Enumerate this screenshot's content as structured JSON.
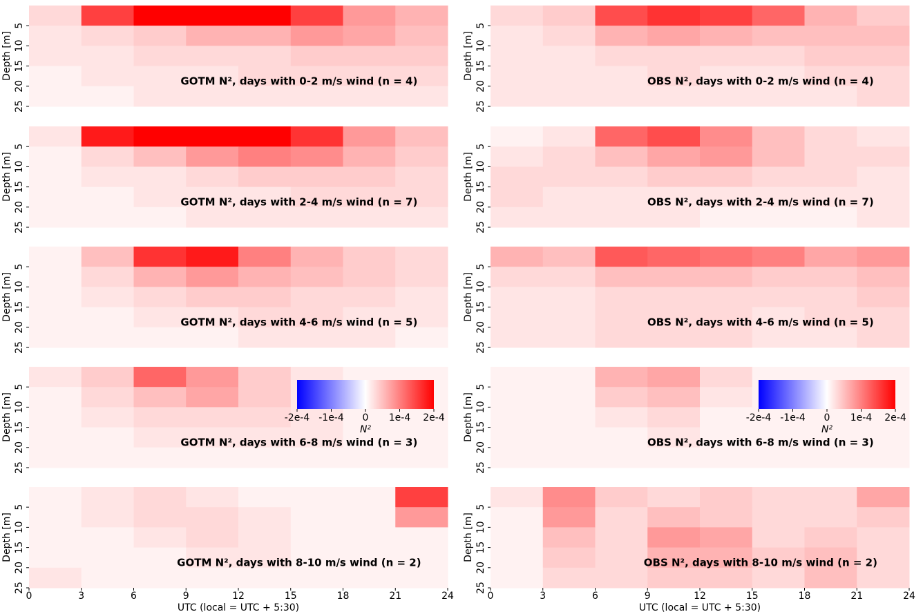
{
  "chart_data": [
    {
      "type": "heatmap",
      "title": "GOTM N², days with 0-2 m/s wind (n = 4)",
      "ylabel": "Depth [m]",
      "colormap": "bwr",
      "clim": [
        -0.0002,
        0.0002
      ],
      "ylim": [
        0,
        25
      ],
      "yticks": [
        5,
        10,
        15,
        20,
        25
      ],
      "xlim": [
        0,
        24
      ],
      "xbins": [
        0,
        3,
        6,
        9,
        12,
        15,
        18,
        21,
        24
      ],
      "ybins": [
        0,
        5,
        10,
        15,
        20,
        25
      ],
      "values": [
        [
          3e-05,
          0.00015,
          0.0002,
          0.0002,
          0.0002,
          0.00015,
          8e-05,
          6e-05
        ],
        [
          2e-05,
          3e-05,
          4e-05,
          6e-05,
          6e-05,
          8e-05,
          7e-05,
          5e-05
        ],
        [
          2e-05,
          2e-05,
          3e-05,
          3e-05,
          3e-05,
          4e-05,
          4e-05,
          4e-05
        ],
        [
          1e-05,
          2e-05,
          2e-05,
          2e-05,
          3e-05,
          3e-05,
          3e-05,
          3e-05
        ],
        [
          1e-05,
          1e-05,
          2e-05,
          2e-05,
          2e-05,
          2e-05,
          2e-05,
          2e-05
        ]
      ]
    },
    {
      "type": "heatmap",
      "title": "GOTM N², days with 2-4 m/s wind (n = 7)",
      "ylabel": "Depth [m]",
      "colormap": "bwr",
      "clim": [
        -0.0002,
        0.0002
      ],
      "ylim": [
        0,
        25
      ],
      "yticks": [
        5,
        10,
        15,
        20,
        25
      ],
      "xlim": [
        0,
        24
      ],
      "xbins": [
        0,
        3,
        6,
        9,
        12,
        15,
        18,
        21,
        24
      ],
      "ybins": [
        0,
        5,
        10,
        15,
        20,
        25
      ],
      "values": [
        [
          2e-05,
          0.00018,
          0.0002,
          0.0002,
          0.0002,
          0.00016,
          8e-05,
          5e-05
        ],
        [
          1e-05,
          3e-05,
          5e-05,
          8e-05,
          0.0001,
          9e-05,
          6e-05,
          4e-05
        ],
        [
          1e-05,
          2e-05,
          2e-05,
          3e-05,
          4e-05,
          4e-05,
          4e-05,
          3e-05
        ],
        [
          1e-05,
          1e-05,
          2e-05,
          2e-05,
          2e-05,
          3e-05,
          3e-05,
          3e-05
        ],
        [
          1e-05,
          1e-05,
          1e-05,
          2e-05,
          2e-05,
          2e-05,
          2e-05,
          2e-05
        ]
      ]
    },
    {
      "type": "heatmap",
      "title": "GOTM N², days with 4-6 m/s wind (n = 5)",
      "ylabel": "Depth [m]",
      "colormap": "bwr",
      "clim": [
        -0.0002,
        0.0002
      ],
      "ylim": [
        0,
        25
      ],
      "yticks": [
        5,
        10,
        15,
        20,
        25
      ],
      "xlim": [
        0,
        24
      ],
      "xbins": [
        0,
        3,
        6,
        9,
        12,
        15,
        18,
        21,
        24
      ],
      "ybins": [
        0,
        5,
        10,
        15,
        20,
        25
      ],
      "values": [
        [
          1e-05,
          5e-05,
          0.00016,
          0.00018,
          0.0001,
          6e-05,
          4e-05,
          3e-05
        ],
        [
          1e-05,
          3e-05,
          6e-05,
          8e-05,
          6e-05,
          5e-05,
          4e-05,
          3e-05
        ],
        [
          1e-05,
          2e-05,
          3e-05,
          4e-05,
          4e-05,
          3e-05,
          3e-05,
          2e-05
        ],
        [
          1e-05,
          1e-05,
          2e-05,
          2e-05,
          3e-05,
          3e-05,
          2e-05,
          2e-05
        ],
        [
          1e-05,
          1e-05,
          1e-05,
          1e-05,
          2e-05,
          2e-05,
          2e-05,
          1e-05
        ]
      ]
    },
    {
      "type": "heatmap",
      "title": "GOTM N², days with 6-8 m/s wind (n = 3)",
      "ylabel": "Depth [m]",
      "colormap": "bwr",
      "clim": [
        -0.0002,
        0.0002
      ],
      "ylim": [
        0,
        25
      ],
      "yticks": [
        5,
        10,
        15,
        20,
        25
      ],
      "xlim": [
        0,
        24
      ],
      "xbins": [
        0,
        3,
        6,
        9,
        12,
        15,
        18,
        21,
        24
      ],
      "ybins": [
        0,
        5,
        10,
        15,
        20,
        25
      ],
      "values": [
        [
          2e-05,
          4e-05,
          0.00012,
          8e-05,
          4e-05,
          2e-05,
          1e-05,
          1e-05
        ],
        [
          1e-05,
          3e-05,
          5e-05,
          7e-05,
          4e-05,
          2e-05,
          1e-05,
          1e-05
        ],
        [
          1e-05,
          2e-05,
          3e-05,
          3e-05,
          3e-05,
          2e-05,
          1e-05,
          1e-05
        ],
        [
          1e-05,
          1e-05,
          2e-05,
          2e-05,
          2e-05,
          2e-05,
          1e-05,
          1e-05
        ],
        [
          1e-05,
          1e-05,
          1e-05,
          1e-05,
          1e-05,
          1e-05,
          1e-05,
          1e-05
        ]
      ],
      "colorbar": {
        "label": "N²",
        "ticks": [
          {
            "value": -0.0002,
            "label": "-2e-4"
          },
          {
            "value": -0.0001,
            "label": "-1e-4"
          },
          0,
          {
            "value": 0.0001,
            "label": "1e-4"
          },
          {
            "value": 0.0002,
            "label": "2e-4"
          }
        ]
      }
    },
    {
      "type": "heatmap",
      "title": "GOTM N², days with 8-10 m/s wind (n = 2)",
      "ylabel": "Depth [m]",
      "xlabel": "UTC (local = UTC + 5:30)",
      "colormap": "bwr",
      "clim": [
        -0.0002,
        0.0002
      ],
      "ylim": [
        0,
        25
      ],
      "yticks": [
        5,
        10,
        15,
        20,
        25
      ],
      "xlim": [
        0,
        24
      ],
      "xticks": [
        0,
        3,
        6,
        9,
        12,
        15,
        18,
        21,
        24
      ],
      "xbins": [
        0,
        3,
        6,
        9,
        12,
        15,
        18,
        21,
        24
      ],
      "ybins": [
        0,
        5,
        10,
        15,
        20,
        25
      ],
      "values": [
        [
          1e-05,
          2e-05,
          3e-05,
          2e-05,
          1e-05,
          1e-05,
          1e-05,
          0.00015
        ],
        [
          1e-05,
          2e-05,
          3e-05,
          3e-05,
          2e-05,
          1e-05,
          1e-05,
          8e-05
        ],
        [
          1e-05,
          1e-05,
          2e-05,
          3e-05,
          2e-05,
          1e-05,
          1e-05,
          1e-05
        ],
        [
          1e-05,
          1e-05,
          1e-05,
          2e-05,
          2e-05,
          1e-05,
          1e-05,
          1e-05
        ],
        [
          2e-05,
          1e-05,
          1e-05,
          1e-05,
          1e-05,
          1e-05,
          1e-05,
          1e-05
        ]
      ]
    },
    {
      "type": "heatmap",
      "title": "OBS N², days with 0-2 m/s wind (n = 4)",
      "ylabel": "Depth [m]",
      "colormap": "bwr",
      "clim": [
        -0.0002,
        0.0002
      ],
      "ylim": [
        0,
        25
      ],
      "yticks": [
        5,
        10,
        15,
        20,
        25
      ],
      "xlim": [
        0,
        24
      ],
      "xbins": [
        0,
        3,
        6,
        9,
        12,
        15,
        18,
        21,
        24
      ],
      "ybins": [
        0,
        5,
        10,
        15,
        20,
        25
      ],
      "values": [
        [
          3e-05,
          4e-05,
          0.00014,
          0.00016,
          0.00015,
          0.00012,
          6e-05,
          4e-05
        ],
        [
          2e-05,
          3e-05,
          6e-05,
          7e-05,
          6e-05,
          5e-05,
          5e-05,
          5e-05
        ],
        [
          2e-05,
          2e-05,
          3e-05,
          3e-05,
          3e-05,
          3e-05,
          4e-05,
          4e-05
        ],
        [
          2e-05,
          2e-05,
          2e-05,
          3e-05,
          2e-05,
          2e-05,
          3e-05,
          3e-05
        ],
        [
          2e-05,
          2e-05,
          2e-05,
          2e-05,
          2e-05,
          2e-05,
          2e-05,
          3e-05
        ]
      ]
    },
    {
      "type": "heatmap",
      "title": "OBS N², days with 2-4 m/s wind (n = 7)",
      "ylabel": "Depth [m]",
      "colormap": "bwr",
      "clim": [
        -0.0002,
        0.0002
      ],
      "ylim": [
        0,
        25
      ],
      "yticks": [
        5,
        10,
        15,
        20,
        25
      ],
      "xlim": [
        0,
        24
      ],
      "xbins": [
        0,
        3,
        6,
        9,
        12,
        15,
        18,
        21,
        24
      ],
      "ybins": [
        0,
        5,
        10,
        15,
        20,
        25
      ],
      "values": [
        [
          1e-05,
          2e-05,
          0.00012,
          0.00014,
          9e-05,
          5e-05,
          3e-05,
          2e-05
        ],
        [
          2e-05,
          3e-05,
          5e-05,
          7e-05,
          8e-05,
          5e-05,
          3e-05,
          3e-05
        ],
        [
          3e-05,
          3e-05,
          3e-05,
          4e-05,
          4e-05,
          3e-05,
          3e-05,
          2e-05
        ],
        [
          3e-05,
          2e-05,
          2e-05,
          2e-05,
          2e-05,
          2e-05,
          2e-05,
          2e-05
        ],
        [
          2e-05,
          2e-05,
          2e-05,
          2e-05,
          1e-05,
          1e-05,
          1e-05,
          2e-05
        ]
      ]
    },
    {
      "type": "heatmap",
      "title": "OBS N², days with 4-6 m/s wind (n = 5)",
      "ylabel": "Depth [m]",
      "colormap": "bwr",
      "clim": [
        -0.0002,
        0.0002
      ],
      "ylim": [
        0,
        25
      ],
      "yticks": [
        5,
        10,
        15,
        20,
        25
      ],
      "xlim": [
        0,
        24
      ],
      "xbins": [
        0,
        3,
        6,
        9,
        12,
        15,
        18,
        21,
        24
      ],
      "ybins": [
        0,
        5,
        10,
        15,
        20,
        25
      ],
      "values": [
        [
          6e-05,
          5e-05,
          0.00013,
          0.00012,
          0.00011,
          0.0001,
          7e-05,
          8e-05
        ],
        [
          3e-05,
          3e-05,
          5e-05,
          5e-05,
          5e-05,
          4e-05,
          4e-05,
          5e-05
        ],
        [
          2e-05,
          2e-05,
          3e-05,
          3e-05,
          3e-05,
          3e-05,
          3e-05,
          4e-05
        ],
        [
          2e-05,
          2e-05,
          3e-05,
          3e-05,
          3e-05,
          2e-05,
          3e-05,
          3e-05
        ],
        [
          2e-05,
          2e-05,
          3e-05,
          3e-05,
          3e-05,
          2e-05,
          2e-05,
          3e-05
        ]
      ]
    },
    {
      "type": "heatmap",
      "title": "OBS N², days with 6-8 m/s wind (n = 3)",
      "ylabel": "Depth [m]",
      "colormap": "bwr",
      "clim": [
        -0.0002,
        0.0002
      ],
      "ylim": [
        0,
        25
      ],
      "yticks": [
        5,
        10,
        15,
        20,
        25
      ],
      "xlim": [
        0,
        24
      ],
      "xbins": [
        0,
        3,
        6,
        9,
        12,
        15,
        18,
        21,
        24
      ],
      "ybins": [
        0,
        5,
        10,
        15,
        20,
        25
      ],
      "values": [
        [
          1e-05,
          1e-05,
          6e-05,
          7e-05,
          3e-05,
          1e-05,
          1e-05,
          1e-05
        ],
        [
          1e-05,
          1e-05,
          4e-05,
          5e-05,
          2e-05,
          1e-05,
          1e-05,
          1e-05
        ],
        [
          1e-05,
          1e-05,
          2e-05,
          3e-05,
          1e-05,
          1e-05,
          1e-05,
          1e-05
        ],
        [
          1e-05,
          1e-05,
          1e-05,
          2e-05,
          1e-05,
          1e-05,
          1e-05,
          1e-05
        ],
        [
          1e-05,
          1e-05,
          1e-05,
          1e-05,
          1e-05,
          1e-05,
          1e-05,
          1e-05
        ]
      ],
      "colorbar": {
        "label": "N²",
        "ticks": [
          {
            "value": -0.0002,
            "label": "-2e-4"
          },
          {
            "value": -0.0001,
            "label": "-1e-4"
          },
          0,
          {
            "value": 0.0001,
            "label": "1e-4"
          },
          {
            "value": 0.0002,
            "label": "2e-4"
          }
        ]
      }
    },
    {
      "type": "heatmap",
      "title": "OBS N², days with 8-10 m/s wind (n = 2)",
      "ylabel": "Depth [m]",
      "xlabel": "UTC (local = UTC + 5:30)",
      "colormap": "bwr",
      "clim": [
        -0.0002,
        0.0002
      ],
      "ylim": [
        0,
        25
      ],
      "yticks": [
        5,
        10,
        15,
        20,
        25
      ],
      "xlim": [
        0,
        24
      ],
      "xticks": [
        0,
        3,
        6,
        9,
        12,
        15,
        18,
        21,
        24
      ],
      "xbins": [
        0,
        3,
        6,
        9,
        12,
        15,
        18,
        21,
        24
      ],
      "ybins": [
        0,
        5,
        10,
        15,
        20,
        25
      ],
      "values": [
        [
          2e-05,
          9e-05,
          4e-05,
          3e-05,
          4e-05,
          3e-05,
          3e-05,
          7e-05
        ],
        [
          1e-05,
          8e-05,
          3e-05,
          5e-05,
          4e-05,
          3e-05,
          3e-05,
          4e-05
        ],
        [
          1e-05,
          5e-05,
          3e-05,
          8e-05,
          7e-05,
          3e-05,
          4e-05,
          3e-05
        ],
        [
          1e-05,
          4e-05,
          3e-05,
          6e-05,
          6e-05,
          4e-05,
          5e-05,
          3e-05
        ],
        [
          1e-05,
          3e-05,
          3e-05,
          4e-05,
          4e-05,
          3e-05,
          5e-05,
          3e-05
        ]
      ]
    }
  ]
}
